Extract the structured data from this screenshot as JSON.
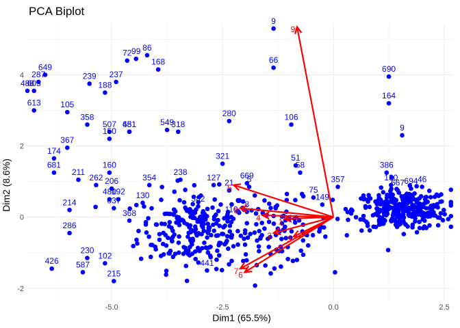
{
  "chart_data": {
    "type": "scatter",
    "title": "PCA Biplot",
    "xlabel": "Dim1 (65.5%)",
    "ylabel": "Dim2 (8.6%)",
    "xlim": [
      -6.9,
      2.7
    ],
    "ylim": [
      -2.35,
      5.45
    ],
    "x_ticks": [
      "-5.0",
      "-2.5",
      "0.0",
      "2.5"
    ],
    "y_ticks": [
      "-2",
      "0",
      "2",
      "4"
    ],
    "grid": true,
    "colors": {
      "points": "#0000ff",
      "vectors": "#ff0000"
    },
    "labeled_points": [
      {
        "label": "9",
        "x": -1.35,
        "y": 5.3
      },
      {
        "label": "86",
        "x": -4.2,
        "y": 4.55
      },
      {
        "label": "72",
        "x": -4.65,
        "y": 4.4
      },
      {
        "label": "99",
        "x": -4.45,
        "y": 4.45
      },
      {
        "label": "168",
        "x": -3.95,
        "y": 4.15
      },
      {
        "label": "649",
        "x": -6.5,
        "y": 4.0
      },
      {
        "label": "239",
        "x": -5.5,
        "y": 3.75
      },
      {
        "label": "237",
        "x": -4.9,
        "y": 3.8
      },
      {
        "label": "287",
        "x": -6.65,
        "y": 3.8
      },
      {
        "label": "488",
        "x": -6.9,
        "y": 3.55
      },
      {
        "label": "603",
        "x": -6.75,
        "y": 3.55
      },
      {
        "label": "188",
        "x": -5.15,
        "y": 3.5
      },
      {
        "label": "613",
        "x": -6.75,
        "y": 3.0
      },
      {
        "label": "105",
        "x": -6.0,
        "y": 2.95
      },
      {
        "label": "66",
        "x": -1.35,
        "y": 4.2
      },
      {
        "label": "690",
        "x": 1.25,
        "y": 3.95
      },
      {
        "label": "164",
        "x": 1.25,
        "y": 3.2
      },
      {
        "label": "9",
        "x": 1.55,
        "y": 2.3
      },
      {
        "label": "358",
        "x": -5.55,
        "y": 2.6
      },
      {
        "label": "280",
        "x": -2.35,
        "y": 2.7
      },
      {
        "label": "106",
        "x": -0.95,
        "y": 2.6
      },
      {
        "label": "507",
        "x": -5.05,
        "y": 2.4
      },
      {
        "label": "150",
        "x": -5.05,
        "y": 2.2
      },
      {
        "label": "451",
        "x": -4.6,
        "y": 2.4
      },
      {
        "label": "681",
        "x": -4.6,
        "y": 2.4
      },
      {
        "label": "549",
        "x": -3.75,
        "y": 2.45
      },
      {
        "label": "318",
        "x": -3.5,
        "y": 2.4
      },
      {
        "label": "367",
        "x": -6.0,
        "y": 1.95
      },
      {
        "label": "174",
        "x": -6.3,
        "y": 1.65
      },
      {
        "label": "681",
        "x": -6.3,
        "y": 1.25
      },
      {
        "label": "321",
        "x": -2.5,
        "y": 1.5
      },
      {
        "label": "51",
        "x": -0.85,
        "y": 1.45
      },
      {
        "label": "58",
        "x": -0.75,
        "y": 1.25
      },
      {
        "label": "160",
        "x": -5.05,
        "y": 1.25
      },
      {
        "label": "386",
        "x": 1.2,
        "y": 1.25
      },
      {
        "label": "238",
        "x": -3.45,
        "y": 1.05
      },
      {
        "label": "211",
        "x": -5.75,
        "y": 1.05
      },
      {
        "label": "669",
        "x": -1.95,
        "y": 0.95
      },
      {
        "label": "262",
        "x": -5.35,
        "y": 0.9
      },
      {
        "label": "354",
        "x": -4.15,
        "y": 0.9
      },
      {
        "label": "127",
        "x": -2.7,
        "y": 0.9
      },
      {
        "label": "357",
        "x": 0.1,
        "y": 0.85
      },
      {
        "label": "130",
        "x": 1.3,
        "y": 0.9
      },
      {
        "label": "667",
        "x": 1.45,
        "y": 0.75
      },
      {
        "label": "694",
        "x": 1.75,
        "y": 0.8
      },
      {
        "label": "46",
        "x": 2.0,
        "y": 0.85
      },
      {
        "label": "21",
        "x": -2.35,
        "y": 0.75
      },
      {
        "label": "75",
        "x": -0.45,
        "y": 0.55
      },
      {
        "label": "206",
        "x": -5.0,
        "y": 0.8
      },
      {
        "label": "480",
        "x": -5.05,
        "y": 0.5
      },
      {
        "label": "192",
        "x": -4.85,
        "y": 0.5
      },
      {
        "label": "214",
        "x": -5.95,
        "y": 0.2
      },
      {
        "label": "149",
        "x": -0.25,
        "y": 0.35
      },
      {
        "label": "637",
        "x": -4.95,
        "y": 0.25
      },
      {
        "label": "130",
        "x": -4.3,
        "y": 0.4
      },
      {
        "label": "382",
        "x": -3.05,
        "y": 0.3
      },
      {
        "label": "368",
        "x": -4.6,
        "y": -0.1
      },
      {
        "label": "286",
        "x": -5.95,
        "y": -0.45
      },
      {
        "label": "426",
        "x": -6.35,
        "y": -1.45
      },
      {
        "label": "230",
        "x": -5.55,
        "y": -1.15
      },
      {
        "label": "587",
        "x": -5.65,
        "y": -1.55
      },
      {
        "label": "102",
        "x": -5.15,
        "y": -1.3
      },
      {
        "label": "215",
        "x": -4.95,
        "y": -1.8
      },
      {
        "label": "441",
        "x": -2.85,
        "y": -1.5
      },
      {
        "label": "110",
        "x": -2.3,
        "y": 0.0
      },
      {
        "label": "8",
        "x": -1.95,
        "y": 0.15
      },
      {
        "label": "5",
        "x": -1.9,
        "y": 0.85
      }
    ],
    "point_cloud_regions": [
      {
        "cx": -3.1,
        "cy": -0.35,
        "sx": 0.65,
        "sy": 0.55,
        "n": 240
      },
      {
        "cx": -1.2,
        "cy": -0.4,
        "sx": 0.55,
        "sy": 0.45,
        "n": 90
      },
      {
        "cx": 1.55,
        "cy": 0.2,
        "sx": 0.55,
        "sy": 0.28,
        "n": 320
      }
    ],
    "vectors": [
      {
        "label": "9",
        "x": -0.82,
        "y": 5.35
      },
      {
        "label": "5",
        "x": -2.25,
        "y": 0.9
      },
      {
        "label": "8",
        "x": -2.1,
        "y": 0.25
      },
      {
        "label": "6",
        "x": -2.0,
        "y": -1.55
      },
      {
        "label": "7",
        "x": -2.1,
        "y": -1.45
      },
      {
        "label": "2",
        "x": -1.35,
        "y": -0.45
      },
      {
        "label": "3",
        "x": -0.9,
        "y": -0.55
      },
      {
        "label": "4",
        "x": -1.6,
        "y": 0.05
      },
      {
        "label": "1",
        "x": -1.1,
        "y": -0.05
      }
    ],
    "vector_origin": [
      0.0,
      0.0
    ]
  }
}
